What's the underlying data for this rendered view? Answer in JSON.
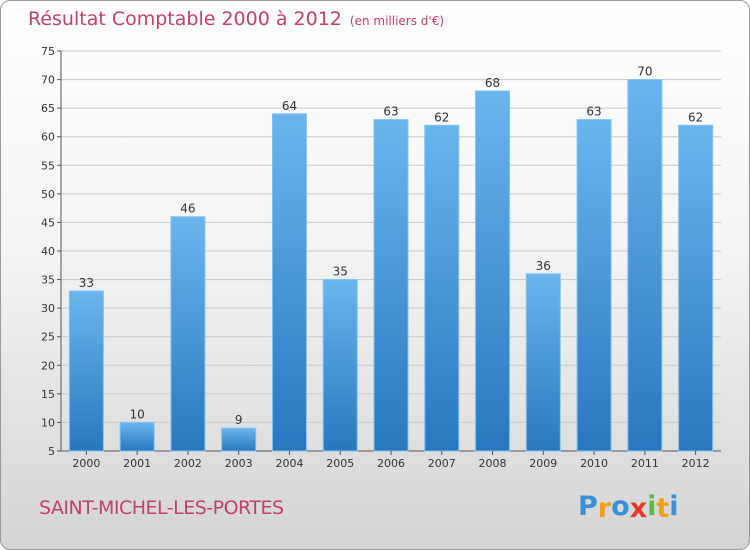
{
  "title": "Résultat Comptable 2000 à 2012",
  "unit": "(en milliers d'€)",
  "city": "SAINT-MICHEL-LES-PORTES",
  "logo": {
    "text": "Proxiti",
    "letters": [
      "P",
      "r",
      "o",
      "x",
      "i",
      "t",
      "i"
    ],
    "colors": [
      "#3a8fd6",
      "#f0a020",
      "#3a8fd6",
      "#e23b2e",
      "#5fb846",
      "#f0a020",
      "#3a8fd6"
    ]
  },
  "colors": {
    "bar": "#4a9ee0",
    "bar_top": "#6bb5ee",
    "bar_bottom": "#2878bf",
    "title": "#c0406a"
  },
  "chart_data": {
    "type": "bar",
    "title": "Résultat Comptable 2000 à 2012",
    "ylabel": "en milliers d'€",
    "xlabel": "",
    "categories": [
      "2000",
      "2001",
      "2002",
      "2003",
      "2004",
      "2005",
      "2006",
      "2007",
      "2008",
      "2009",
      "2010",
      "2011",
      "2012"
    ],
    "values": [
      33,
      10,
      46,
      9,
      64,
      35,
      63,
      62,
      68,
      36,
      63,
      70,
      62
    ],
    "value_labels": [
      "33",
      "10",
      "46",
      "9",
      "64",
      "35",
      "63",
      "62",
      "68",
      "36",
      "63",
      "70",
      "62"
    ],
    "ylim": [
      5,
      75
    ],
    "yticks": [
      5,
      10,
      15,
      20,
      25,
      30,
      35,
      40,
      45,
      50,
      55,
      60,
      65,
      70,
      75
    ],
    "ytick_labels": [
      "5",
      "10",
      "15",
      "20",
      "25",
      "30",
      "35",
      "40",
      "45",
      "50",
      "55",
      "60",
      "65",
      "70",
      "75"
    ],
    "grid": true
  }
}
